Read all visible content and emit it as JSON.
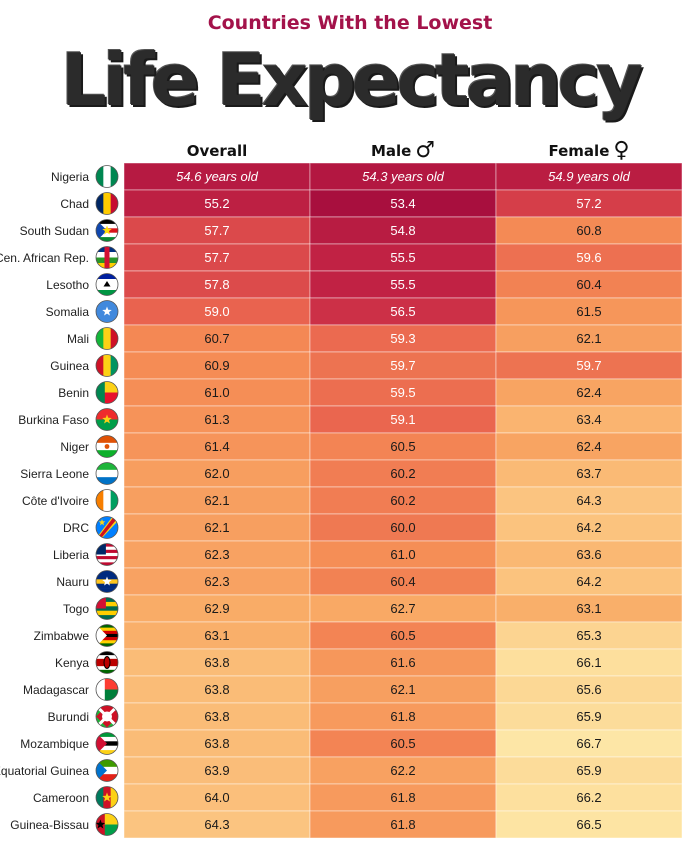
{
  "subtitle": "Countries With the Lowest",
  "title": "Life Expectancy",
  "columns": {
    "overall": "Overall",
    "male": "Male",
    "male_symbol": "♂",
    "female": "Female",
    "female_symbol": "♀"
  },
  "first_row_suffix": " years old",
  "colors": {
    "darkest": "#a80f3e",
    "lightest": "#fde8a8",
    "title": "#2b2b2b",
    "subtitle": "#a3124a"
  },
  "chart_data": {
    "type": "table",
    "title": "Countries With the Lowest Life Expectancy",
    "columns": [
      "Overall",
      "Male",
      "Female"
    ],
    "unit": "years old",
    "rows": [
      {
        "country": "Nigeria",
        "flag": "nigeria-flag-icon",
        "overall": 54.6,
        "male": 54.3,
        "female": 54.9
      },
      {
        "country": "Chad",
        "flag": "chad-flag-icon",
        "overall": 55.2,
        "male": 53.4,
        "female": 57.2
      },
      {
        "country": "South Sudan",
        "flag": "south-sudan-flag-icon",
        "overall": 57.7,
        "male": 54.8,
        "female": 60.8
      },
      {
        "country": "Cen. African Rep.",
        "flag": "central-african-republic-flag-icon",
        "overall": 57.7,
        "male": 55.5,
        "female": 59.6
      },
      {
        "country": "Lesotho",
        "flag": "lesotho-flag-icon",
        "overall": 57.8,
        "male": 55.5,
        "female": 60.4
      },
      {
        "country": "Somalia",
        "flag": "somalia-flag-icon",
        "overall": 59.0,
        "male": 56.5,
        "female": 61.5
      },
      {
        "country": "Mali",
        "flag": "mali-flag-icon",
        "overall": 60.7,
        "male": 59.3,
        "female": 62.1
      },
      {
        "country": "Guinea",
        "flag": "guinea-flag-icon",
        "overall": 60.9,
        "male": 59.7,
        "female": 59.7
      },
      {
        "country": "Benin",
        "flag": "benin-flag-icon",
        "overall": 61.0,
        "male": 59.5,
        "female": 62.4
      },
      {
        "country": "Burkina Faso",
        "flag": "burkina-faso-flag-icon",
        "overall": 61.3,
        "male": 59.1,
        "female": 63.4
      },
      {
        "country": "Niger",
        "flag": "niger-flag-icon",
        "overall": 61.4,
        "male": 60.5,
        "female": 62.4
      },
      {
        "country": "Sierra Leone",
        "flag": "sierra-leone-flag-icon",
        "overall": 62.0,
        "male": 60.2,
        "female": 63.7
      },
      {
        "country": "Côte d'Ivoire",
        "flag": "cote-divoire-flag-icon",
        "overall": 62.1,
        "male": 60.2,
        "female": 64.3
      },
      {
        "country": "DRC",
        "flag": "drc-flag-icon",
        "overall": 62.1,
        "male": 60.0,
        "female": 64.2
      },
      {
        "country": "Liberia",
        "flag": "liberia-flag-icon",
        "overall": 62.3,
        "male": 61.0,
        "female": 63.6
      },
      {
        "country": "Nauru",
        "flag": "nauru-flag-icon",
        "overall": 62.3,
        "male": 60.4,
        "female": 64.2
      },
      {
        "country": "Togo",
        "flag": "togo-flag-icon",
        "overall": 62.9,
        "male": 62.7,
        "female": 63.1
      },
      {
        "country": "Zimbabwe",
        "flag": "zimbabwe-flag-icon",
        "overall": 63.1,
        "male": 60.5,
        "female": 65.3
      },
      {
        "country": "Kenya",
        "flag": "kenya-flag-icon",
        "overall": 63.8,
        "male": 61.6,
        "female": 66.1
      },
      {
        "country": "Madagascar",
        "flag": "madagascar-flag-icon",
        "overall": 63.8,
        "male": 62.1,
        "female": 65.6
      },
      {
        "country": "Burundi",
        "flag": "burundi-flag-icon",
        "overall": 63.8,
        "male": 61.8,
        "female": 65.9
      },
      {
        "country": "Mozambique",
        "flag": "mozambique-flag-icon",
        "overall": 63.8,
        "male": 60.5,
        "female": 66.7
      },
      {
        "country": "Equatorial Guinea",
        "flag": "equatorial-guinea-flag-icon",
        "overall": 63.9,
        "male": 62.2,
        "female": 65.9
      },
      {
        "country": "Cameroon",
        "flag": "cameroon-flag-icon",
        "overall": 64.0,
        "male": 61.8,
        "female": 66.2
      },
      {
        "country": "Guinea-Bissau",
        "flag": "guinea-bissau-flag-icon",
        "overall": 64.3,
        "male": 61.8,
        "female": 66.5
      }
    ],
    "color_scale": {
      "min": 53.4,
      "max": 67.0
    }
  }
}
